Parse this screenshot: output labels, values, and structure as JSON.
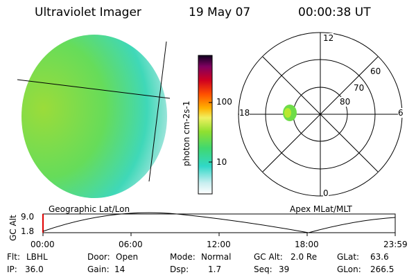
{
  "header": {
    "instrument": "Ultraviolet Imager",
    "date": "19 May 07",
    "time": "00:00:38 UT"
  },
  "colorbar": {
    "unit_label": "photon cm-2s-1",
    "tick_labels": [
      "100",
      "10"
    ]
  },
  "polar_plot": {
    "mlt_labels": [
      "12",
      "18",
      "6",
      "0"
    ],
    "mlat_labels": [
      "60",
      "70",
      "80"
    ]
  },
  "panel_labels": {
    "left": "Geographic Lat/Lon",
    "right": "Apex MLat/MLT"
  },
  "altitude_plot": {
    "ylabel": "GC Alt",
    "y_ticks": [
      "9.0",
      "1.8"
    ],
    "x_ticks": [
      "00:00",
      "06:00",
      "12:00",
      "18:00",
      "23:59"
    ]
  },
  "info": {
    "flt_label": "Flt:",
    "flt_value": "LBHL",
    "ip_label": "IP:",
    "ip_value": "36.0",
    "door_label": "Door:",
    "door_value": "Open",
    "gain_label": "Gain:",
    "gain_value": "14",
    "mode_label": "Mode:",
    "mode_value": "Normal",
    "dsp_label": "Dsp:",
    "dsp_value": "1.7",
    "gcalt_label": "GC Alt:",
    "gcalt_value": "2.0 Re",
    "seq_label": "Seq:",
    "seq_value": "39",
    "glat_label": "GLat:",
    "glat_value": "63.6",
    "glon_label": "GLon:",
    "glon_value": "266.5"
  }
}
